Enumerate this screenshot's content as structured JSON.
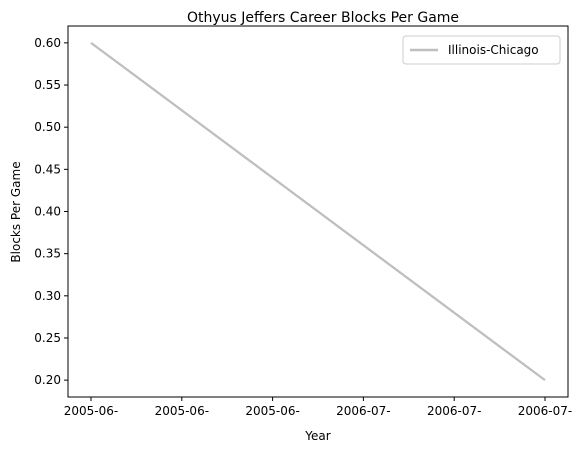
{
  "chart_data": {
    "type": "line",
    "title": "Othyus Jeffers Career Blocks Per Game",
    "xlabel": "Year",
    "ylabel": "Blocks Per Game",
    "x_tick_labels": [
      "2005-06-",
      "2005-06-",
      "2005-06-",
      "2006-07-",
      "2006-07-",
      "2006-07-"
    ],
    "y_ticks": [
      0.2,
      0.25,
      0.3,
      0.35,
      0.4,
      0.45,
      0.5,
      0.55,
      0.6
    ],
    "y_tick_labels": [
      "0.20",
      "0.25",
      "0.30",
      "0.35",
      "0.40",
      "0.45",
      "0.50",
      "0.55",
      "0.60"
    ],
    "ylim": [
      0.18,
      0.62
    ],
    "x": [
      "2005-06-",
      "2006-07-"
    ],
    "series": [
      {
        "name": "Illinois-Chicago",
        "values": [
          0.6,
          0.2
        ],
        "color": "#bfbfbf"
      }
    ],
    "grid": false,
    "legend_position": "top-right"
  }
}
